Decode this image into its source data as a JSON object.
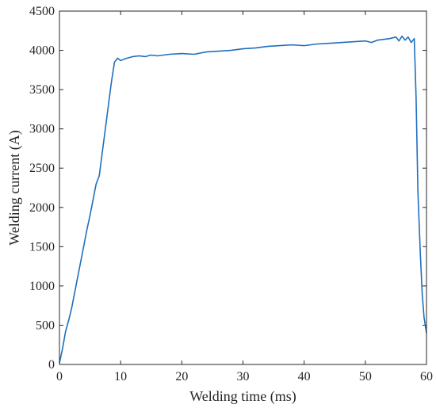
{
  "chart_data": {
    "type": "line",
    "title": "",
    "xlabel": "Welding time (ms)",
    "ylabel": "Welding current (A)",
    "xlim": [
      0,
      60
    ],
    "ylim": [
      0,
      4500
    ],
    "xticks": [
      0,
      10,
      20,
      30,
      40,
      50,
      60
    ],
    "yticks": [
      0,
      500,
      1000,
      1500,
      2000,
      2500,
      3000,
      3500,
      4000,
      4500
    ],
    "grid": false,
    "legend": "none",
    "series": [
      {
        "color": "#1f6fbf",
        "x": [
          0,
          0.5,
          1,
          1.5,
          2,
          2.5,
          3,
          3.5,
          4,
          4.5,
          5,
          5.5,
          6,
          6.5,
          7,
          7.5,
          8,
          8.5,
          9,
          9.5,
          10,
          11,
          12,
          13,
          14,
          15,
          16,
          18,
          20,
          22,
          24,
          26,
          28,
          30,
          32,
          34,
          36,
          38,
          40,
          42,
          44,
          46,
          48,
          50,
          51,
          52,
          53,
          54,
          55,
          55.5,
          56,
          56.5,
          57,
          57.5,
          58,
          58.3,
          58.6,
          59,
          59.3,
          59.6,
          60
        ],
        "y": [
          20,
          200,
          420,
          560,
          720,
          920,
          1120,
          1320,
          1520,
          1720,
          1900,
          2100,
          2300,
          2400,
          2700,
          3000,
          3300,
          3600,
          3850,
          3900,
          3870,
          3900,
          3920,
          3930,
          3920,
          3940,
          3930,
          3950,
          3960,
          3950,
          3980,
          3990,
          4000,
          4020,
          4030,
          4050,
          4060,
          4070,
          4060,
          4080,
          4090,
          4100,
          4110,
          4120,
          4100,
          4130,
          4140,
          4150,
          4170,
          4120,
          4180,
          4130,
          4170,
          4100,
          4150,
          3400,
          2200,
          1400,
          900,
          600,
          400
        ]
      }
    ]
  }
}
